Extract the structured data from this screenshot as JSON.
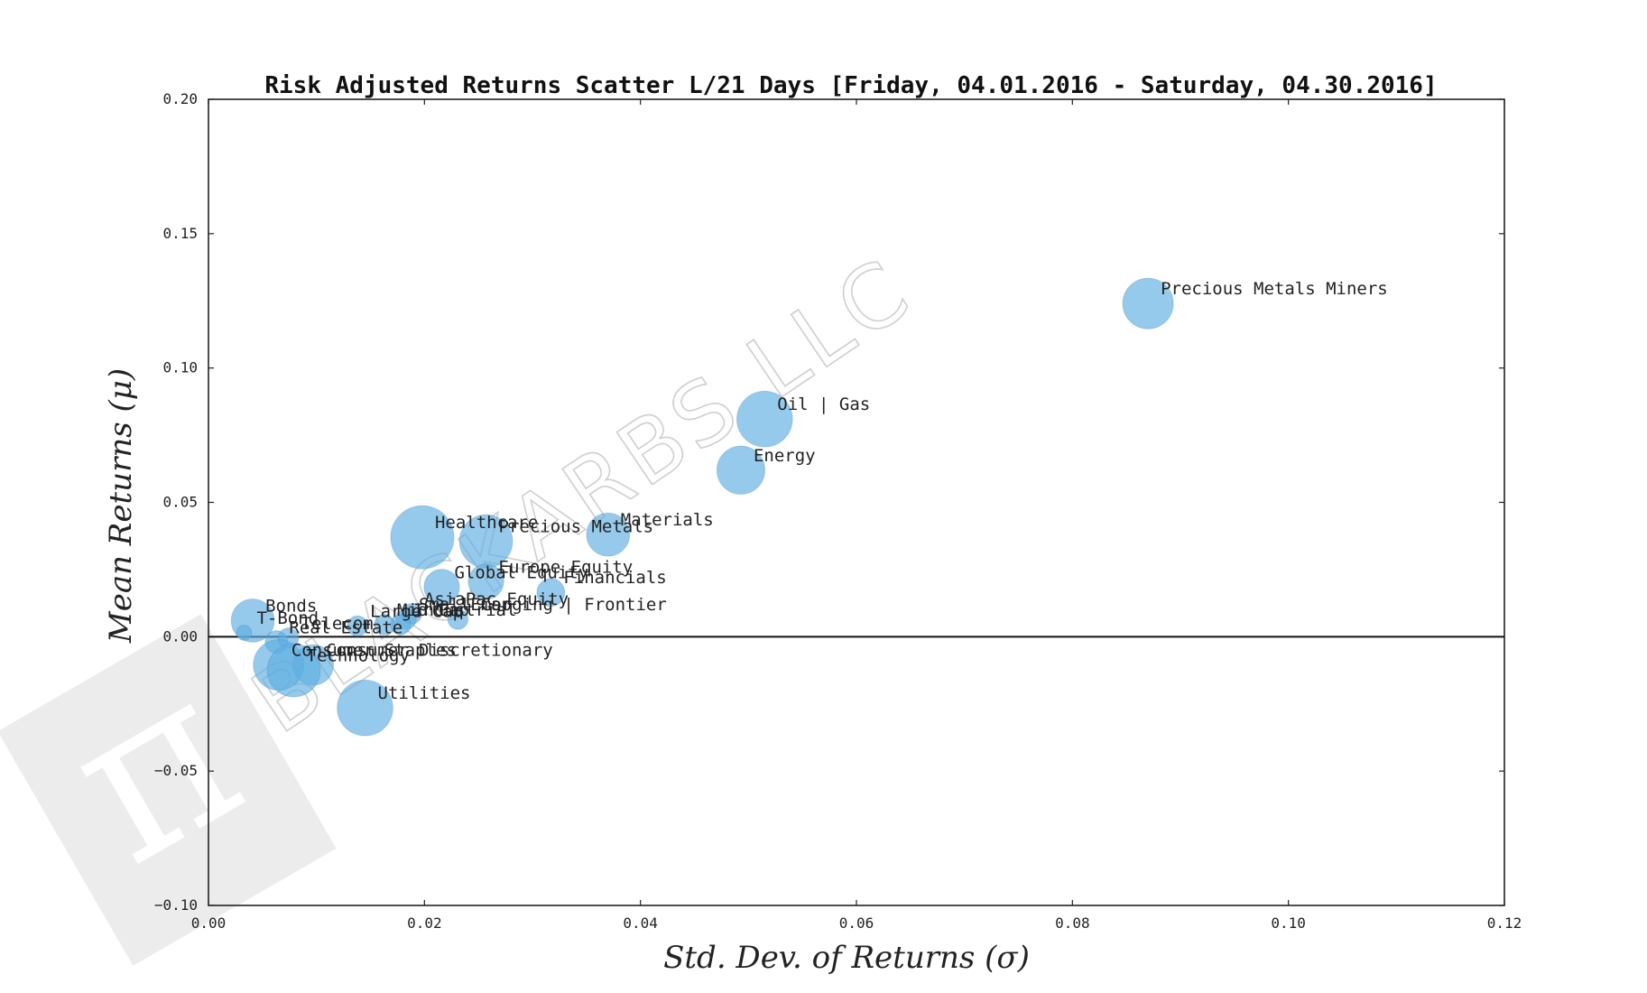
{
  "chart_data": {
    "type": "scatter",
    "title": "Risk Adjusted Returns Scatter L/21 Days [Friday, 04.01.2016 - Saturday, 04.30.2016]",
    "xlabel": "Std.  Dev.  of  Returns    (σ)",
    "ylabel": "Mean  Returns    (μ)",
    "xlim": [
      0.0,
      0.12
    ],
    "ylim": [
      -0.1,
      0.2
    ],
    "xticks": [
      "0.00",
      "0.02",
      "0.04",
      "0.06",
      "0.08",
      "0.10",
      "0.12"
    ],
    "yticks": [
      "−0.10",
      "−0.05",
      "0.00",
      "0.05",
      "0.10",
      "0.15",
      "0.20"
    ],
    "zero_line": 0.0,
    "grid": false,
    "marker_color": "#5dade2",
    "points": [
      {
        "label": "Precious Metals Miners",
        "x": 0.087,
        "y": 0.124,
        "size": 1.0
      },
      {
        "label": "Oil | Gas",
        "x": 0.0515,
        "y": 0.081,
        "size": 1.1
      },
      {
        "label": "Energy",
        "x": 0.0493,
        "y": 0.062,
        "size": 0.95
      },
      {
        "label": "Materials",
        "x": 0.037,
        "y": 0.038,
        "size": 0.85
      },
      {
        "label": "Precious Metals",
        "x": 0.0257,
        "y": 0.0355,
        "size": 1.05
      },
      {
        "label": "Healthcare",
        "x": 0.0198,
        "y": 0.037,
        "size": 1.25
      },
      {
        "label": "Financials",
        "x": 0.0317,
        "y": 0.0165,
        "size": 0.55
      },
      {
        "label": "Europe Equity",
        "x": 0.0257,
        "y": 0.0205,
        "size": 0.7
      },
      {
        "label": "Global Equity",
        "x": 0.0216,
        "y": 0.0185,
        "size": 0.7
      },
      {
        "label": "Emerging | Frontier",
        "x": 0.0231,
        "y": 0.0065,
        "size": 0.4
      },
      {
        "label": "AsiaPac Equity",
        "x": 0.0188,
        "y": 0.0085,
        "size": 0.4
      },
      {
        "label": "Small Cap",
        "x": 0.0183,
        "y": 0.0065,
        "size": 0.4
      },
      {
        "label": "Industrial",
        "x": 0.0178,
        "y": 0.0045,
        "size": 0.4
      },
      {
        "label": "Mid Cap",
        "x": 0.0163,
        "y": 0.0045,
        "size": 0.4
      },
      {
        "label": "Large Cap",
        "x": 0.0138,
        "y": 0.004,
        "size": 0.4
      },
      {
        "label": "Bonds",
        "x": 0.0041,
        "y": 0.006,
        "size": 0.85
      },
      {
        "label": "T-Bond",
        "x": 0.0033,
        "y": 0.0015,
        "size": 0.3
      },
      {
        "label": "Real Estate",
        "x": 0.0063,
        "y": -0.002,
        "size": 0.45
      },
      {
        "label": "Telecom",
        "x": 0.0074,
        "y": -0.0005,
        "size": 0.4
      },
      {
        "label": "Consumer Staples",
        "x": 0.0065,
        "y": -0.0105,
        "size": 1.0
      },
      {
        "label": "Consumer Discretionary",
        "x": 0.0097,
        "y": -0.0105,
        "size": 0.8
      },
      {
        "label": "Technology",
        "x": 0.0079,
        "y": -0.0125,
        "size": 1.05
      },
      {
        "label": "Utilities",
        "x": 0.0145,
        "y": -0.0265,
        "size": 1.1
      }
    ]
  },
  "watermark": {
    "text": "BLACKARBS LLC",
    "logo": "pi-symbol"
  }
}
